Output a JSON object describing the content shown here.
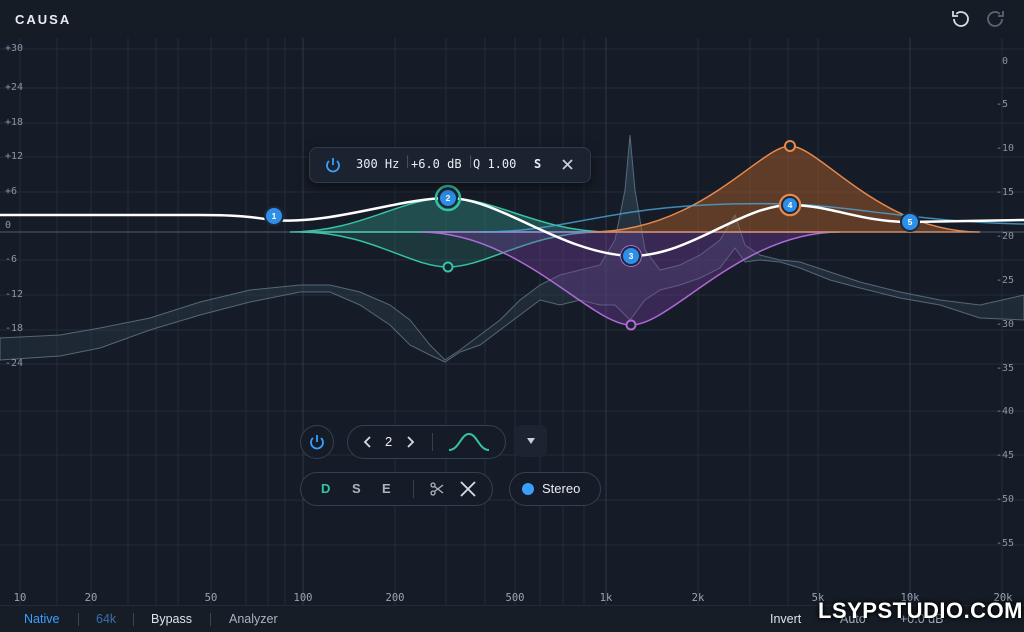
{
  "app": {
    "title": "CAUSA"
  },
  "y_axis_left": [
    "+30",
    "+24",
    "+18",
    "+12",
    "+6",
    "0",
    "-6",
    "-12",
    "-18",
    "-24"
  ],
  "y_axis_right": [
    "0",
    "-5",
    "-10",
    "-15",
    "-20",
    "-25",
    "-30",
    "-35",
    "-40",
    "-45",
    "-50",
    "-55"
  ],
  "x_axis": [
    "10",
    "20",
    "50",
    "100",
    "200",
    "500",
    "1k",
    "2k",
    "5k",
    "10k",
    "20k"
  ],
  "band_tooltip": {
    "freq": "300 Hz",
    "gain": "+6.0 dB",
    "q": "Q 1.00",
    "solo": "S"
  },
  "nodes": [
    {
      "label": "1",
      "color": "#3aa0ff"
    },
    {
      "label": "2",
      "color": "#3aa0ff"
    },
    {
      "label": "3",
      "color": "#3aa0ff"
    },
    {
      "label": "4",
      "color": "#3aa0ff"
    },
    {
      "label": "5",
      "color": "#3aa0ff"
    }
  ],
  "band_panel": {
    "band_number": "2",
    "modes": {
      "d": "D",
      "s": "S",
      "e": "E"
    },
    "channel": "Stereo"
  },
  "bottom_bar": {
    "native": "Native",
    "rate": "64k",
    "bypass": "Bypass",
    "analyzer": "Analyzer",
    "invert": "Invert",
    "auto": "Auto",
    "gain": "+0.0 dB"
  },
  "watermark": "LSYPSTUDIO.COM",
  "colors": {
    "accent": "#3aa0ff",
    "teal": "#35c3a3",
    "purple": "#b06ad8",
    "orange": "#e8894a"
  }
}
